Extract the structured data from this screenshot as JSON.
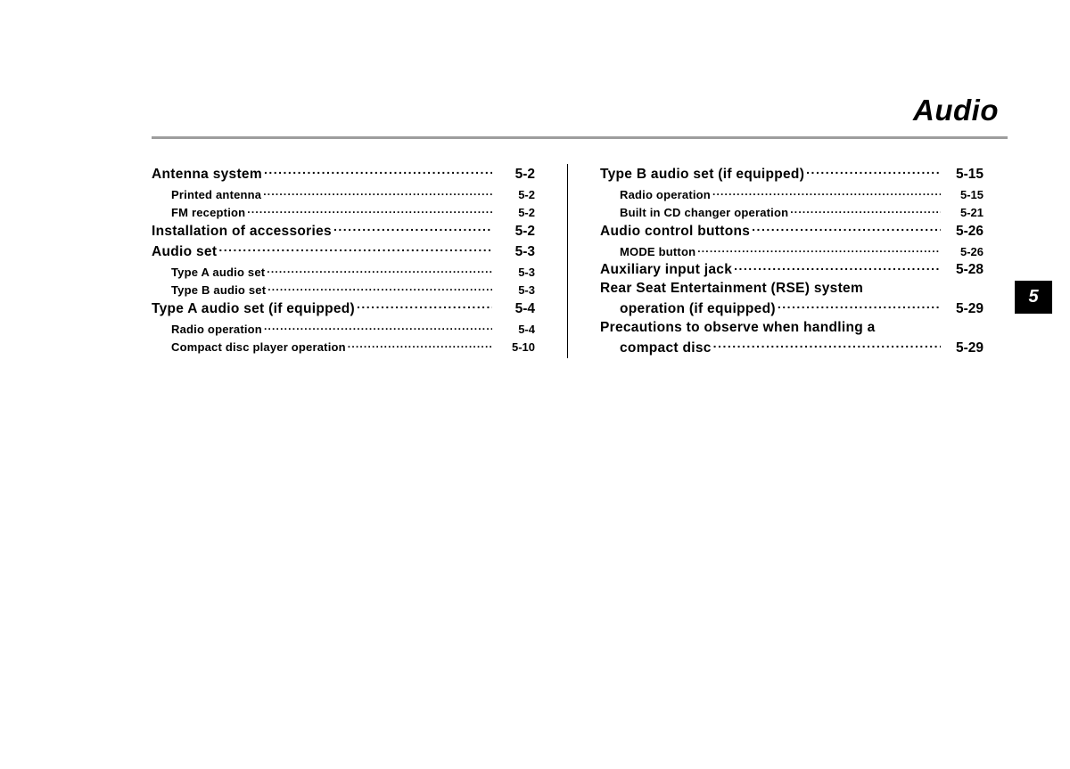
{
  "title": "Audio",
  "tab": "5",
  "left": [
    {
      "t": "main",
      "label": "Antenna system",
      "page": "5-2"
    },
    {
      "t": "sub",
      "label": "Printed antenna",
      "page": "5-2"
    },
    {
      "t": "sub",
      "label": "FM reception",
      "page": "5-2"
    },
    {
      "t": "main",
      "label": "Installation of accessories",
      "page": "5-2"
    },
    {
      "t": "main",
      "label": "Audio set",
      "page": "5-3"
    },
    {
      "t": "sub",
      "label": "Type A audio set",
      "page": "5-3"
    },
    {
      "t": "sub",
      "label": "Type B audio set",
      "page": "5-3"
    },
    {
      "t": "main",
      "label": "Type A audio set (if equipped)",
      "page": "5-4"
    },
    {
      "t": "sub",
      "label": "Radio operation",
      "page": "5-4"
    },
    {
      "t": "sub",
      "label": "Compact disc player operation",
      "page": "5-10"
    }
  ],
  "right": [
    {
      "t": "main",
      "label": "Type B audio set (if equipped)",
      "page": "5-15"
    },
    {
      "t": "sub",
      "label": "Radio operation",
      "page": "5-15"
    },
    {
      "t": "sub",
      "label": "Built in CD changer operation",
      "page": "5-21"
    },
    {
      "t": "main",
      "label": "Audio control buttons",
      "page": "5-26"
    },
    {
      "t": "sub",
      "label": "MODE button",
      "page": "5-26"
    },
    {
      "t": "main",
      "label": "Auxiliary input jack",
      "page": "5-28"
    },
    {
      "t": "main",
      "label": "Rear Seat Entertainment (RSE) system",
      "page": ""
    },
    {
      "t": "cont",
      "label": "operation (if equipped)",
      "page": "5-29"
    },
    {
      "t": "main",
      "label": "Precautions to observe when handling a",
      "page": ""
    },
    {
      "t": "cont",
      "label": "compact disc",
      "page": "5-29"
    }
  ]
}
